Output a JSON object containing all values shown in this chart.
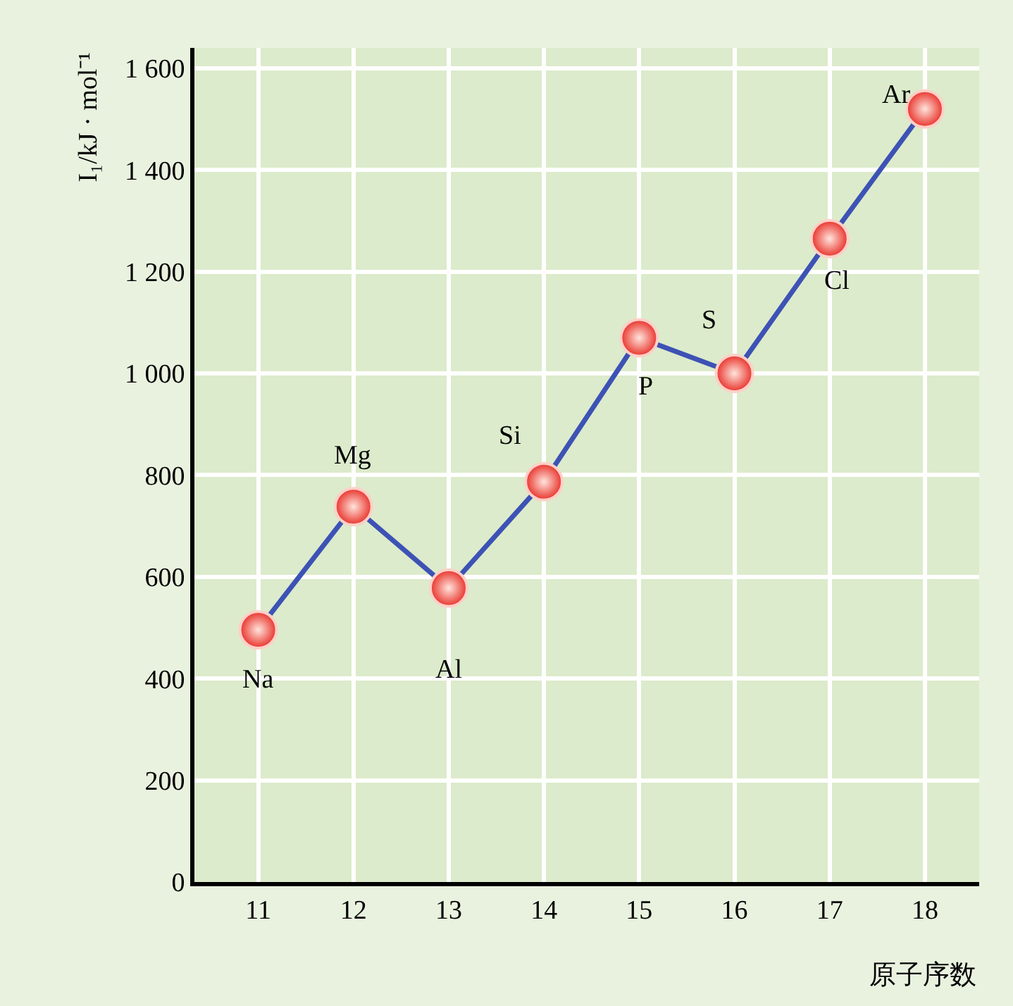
{
  "chart_data": {
    "type": "line",
    "ylabel": "I₁/kJ · mol⁻¹",
    "xlabel": "原子序数",
    "x": [
      11,
      12,
      13,
      14,
      15,
      16,
      17,
      18
    ],
    "series": [
      {
        "color": "#3d52b5",
        "values": [
          496,
          738,
          578,
          787,
          1070,
          1000,
          1265,
          1520
        ]
      }
    ],
    "marker": "circle",
    "line_style": "solid",
    "grid": true,
    "legend": false,
    "xlim": [
      10.33,
      18.57
    ],
    "ylim": [
      0,
      1640
    ],
    "xticks": [
      11,
      12,
      13,
      14,
      15,
      16,
      17,
      18
    ],
    "yticks": [
      0,
      200,
      400,
      600,
      800,
      {
        "value": 1000,
        "label": "1 000"
      },
      {
        "value": 1200,
        "label": "1 200"
      },
      {
        "value": 1400,
        "label": "1 400"
      },
      {
        "value": 1600,
        "label": "1 600"
      }
    ],
    "annotations": [
      {
        "text": "Na",
        "x": 11,
        "y": 496
      },
      {
        "text": "Mg",
        "x": 12,
        "y": 738
      },
      {
        "text": "Al",
        "x": 13,
        "y": 578
      },
      {
        "text": "Si",
        "x": 14,
        "y": 787
      },
      {
        "text": "P",
        "x": 15,
        "y": 1070
      },
      {
        "text": "S",
        "x": 16,
        "y": 1000
      },
      {
        "text": "Cl",
        "x": 17,
        "y": 1265
      },
      {
        "text": "Ar",
        "x": 18,
        "y": 1520
      }
    ]
  }
}
